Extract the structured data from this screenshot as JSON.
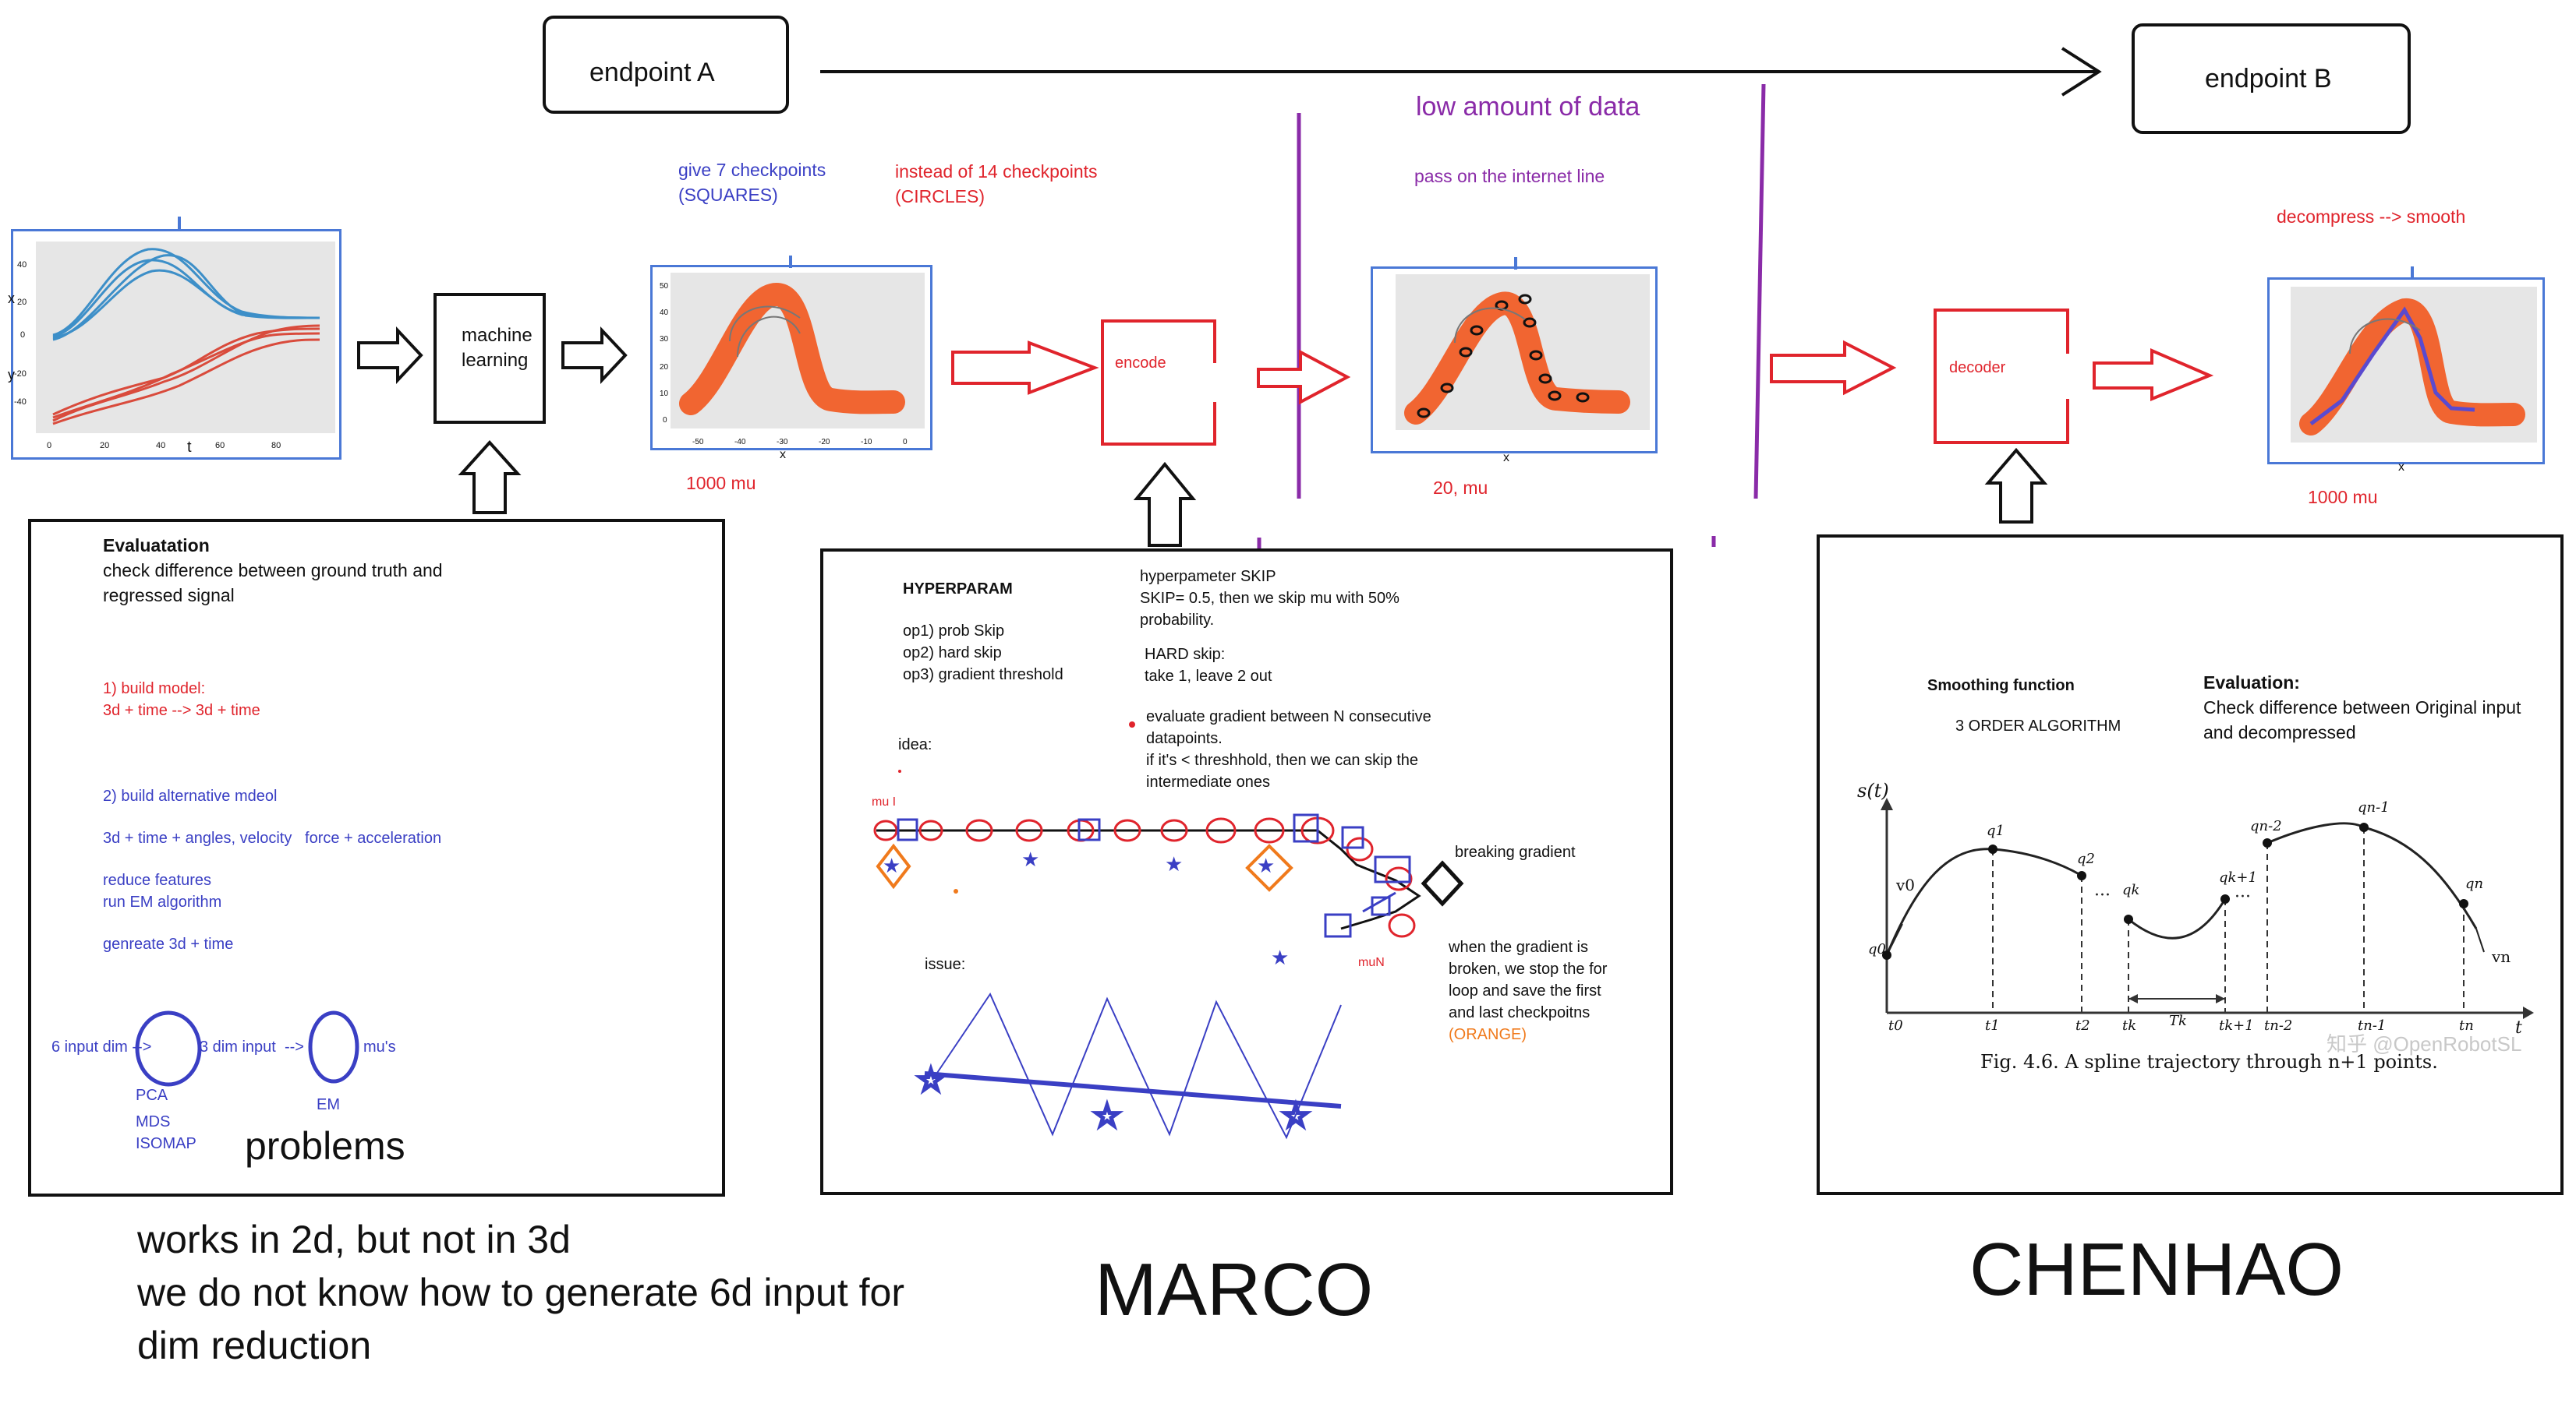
{
  "top": {
    "endpoint_a": "endpoint A",
    "endpoint_b": "endpoint B",
    "low_data": "low amount of data",
    "internet_line": "pass on the internet line"
  },
  "flow": {
    "machine_learning_1": "machine",
    "machine_learning_2": "learning",
    "give_checkpoints_1": "give 7 checkpoints",
    "give_checkpoints_2": "(SQUARES)",
    "instead_1": "instead of 14 checkpoints",
    "instead_2": "(CIRCLES)",
    "encode": "encode",
    "decoder": "decoder",
    "decompress": "decompress --> smooth",
    "mu_1000_a": "1000 mu",
    "mu_20": "20, mu",
    "mu_1000_b": "1000 mu"
  },
  "input_plot": {
    "y_label": "x",
    "y2_label": "y",
    "x_label": "t",
    "y_ticks": [
      "40",
      "20",
      "0",
      "-20",
      "-40"
    ],
    "x_ticks": [
      "0",
      "20",
      "40",
      "60",
      "80"
    ]
  },
  "traj_plot": {
    "x_label": "x",
    "y_ticks": [
      "50",
      "40",
      "30",
      "20",
      "10",
      "0"
    ],
    "x_ticks": [
      "-50",
      "-40",
      "-30",
      "-20",
      "-10",
      "0"
    ]
  },
  "left_panel": {
    "eval_title": "Evaluatation",
    "eval_l1": "check difference between ground truth and",
    "eval_l2": "regressed signal",
    "build1_a": "1) build model:",
    "build1_b": "3d + time --> 3d + time",
    "build2": "2) build alternative mdeol",
    "features": "3d + time + angles, velocity   force + acceleration",
    "reduce": "reduce features",
    "run_em": "run EM algorithm",
    "generate": "genreate 3d + time",
    "input6": "6 input dim -->",
    "input3": "3 dim input  -->",
    "mus": "mu's",
    "pca": "PCA",
    "mds": "MDS",
    "isomap": "ISOMAP",
    "em": "EM",
    "problems": "problems"
  },
  "bottom_notes": {
    "l1": "works in 2d, but not in 3d",
    "l2": "we do not know how to generate 6d input for",
    "l3": "dim reduction"
  },
  "mid_panel": {
    "hyperparam": "HYPERPARAM",
    "op1": "op1) prob Skip",
    "op2": "op2) hard skip",
    "op3": "op3) gradient threshold",
    "skip_1": "hyperpameter SKIP",
    "skip_2": "SKIP= 0.5, then we skip mu with 50%",
    "skip_3": "probability.",
    "hard_1": "HARD skip:",
    "hard_2": "take 1, leave 2 out",
    "grad_1": "evaluate gradient between N consecutive",
    "grad_2": "datapoints.",
    "grad_3": "if it's < threshhold, then we can skip the",
    "grad_4": "intermediate ones",
    "idea": "idea:",
    "mu1": "mu I",
    "muN": "muN",
    "breaking": "breaking gradient",
    "broken_1": "when the gradient is",
    "broken_2": "broken, we stop the for",
    "broken_3": "loop and save the first",
    "broken_4": "and last checkpoitns",
    "broken_5": "(ORANGE)",
    "issue": "issue:"
  },
  "right_panel": {
    "smoothing": "Smoothing function",
    "order": "3 ORDER ALGORITHM",
    "eval_title": "Evaluation:",
    "eval_l1": "Check difference between Original input",
    "eval_l2": "and decompressed",
    "s_label": "s(t)",
    "t_label": "t",
    "v0": "v0",
    "vn": "vn",
    "q0": "q0",
    "q1": "q1",
    "q2": "q2",
    "qk": "qk",
    "qk1": "qk+1",
    "qn2": "qn-2",
    "qn1": "qn-1",
    "qn": "qn",
    "t0": "t0",
    "t1": "t1",
    "t2": "t2",
    "tk": "tk",
    "Tk": "Tk",
    "tk1": "tk+1",
    "tn2": "tn-2",
    "tn1": "tn-1",
    "tn": "tn",
    "caption": "Fig. 4.6. A spline trajectory through n+1 points.",
    "watermark": "知乎 @OpenRobotSL"
  },
  "names": {
    "marco": "MARCO",
    "chenhao": "CHENHAO"
  },
  "colors": {
    "blue": "#3a3fc4",
    "red": "#e0242c",
    "purple": "#8a2ba8",
    "orange": "#f07a1c",
    "traj": "#f2561d"
  }
}
